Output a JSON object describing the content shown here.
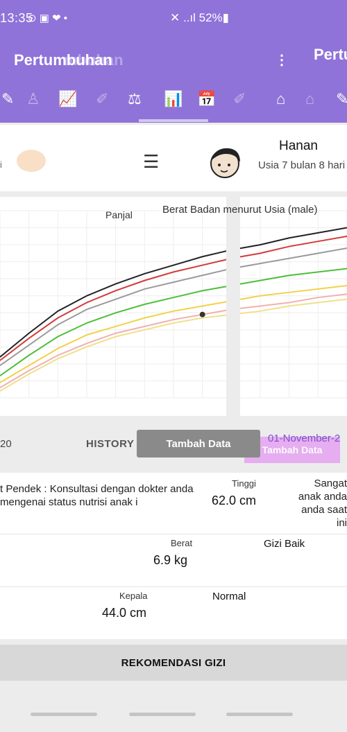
{
  "status_bar": {
    "time": "13:35",
    "sys_icons": "⊙ ▣ ❤ •",
    "right_text": "✕ ..ıl 52%▮"
  },
  "app_bar": {
    "title": "Pertumbuhan",
    "title_ghost": "mbuhan",
    "title_right": "Pertumbuhan",
    "menu_icon": "more-vert-icon"
  },
  "profile": {
    "name": "Hanan",
    "age": "Usia 7 bulan 8 hari",
    "ghost_text": "i"
  },
  "chart": {
    "title": "Berat Badan menurut Usia (male)",
    "ghost_title": "Panjal"
  },
  "chart_data": {
    "type": "line",
    "title": "Berat Badan menurut Usia (male)",
    "xlabel": "",
    "ylabel": "",
    "x": [
      0,
      1,
      2,
      3,
      4,
      5,
      6,
      7,
      8,
      9,
      10,
      11,
      12
    ],
    "series": [
      {
        "values": [
          4.4,
          5.8,
          7.1,
          8.0,
          8.7,
          9.3,
          9.8,
          10.3,
          10.7,
          11.0,
          11.4,
          11.7,
          12.0
        ]
      },
      {
        "values": [
          4.2,
          5.5,
          6.7,
          7.6,
          8.3,
          8.9,
          9.4,
          9.8,
          10.2,
          10.5,
          10.9,
          11.2,
          11.5
        ]
      },
      {
        "values": [
          3.9,
          5.1,
          6.3,
          7.2,
          7.8,
          8.4,
          8.8,
          9.2,
          9.6,
          9.9,
          10.2,
          10.5,
          10.8
        ]
      },
      {
        "values": [
          3.3,
          4.5,
          5.6,
          6.4,
          7.0,
          7.5,
          7.9,
          8.3,
          8.6,
          8.9,
          9.2,
          9.4,
          9.6
        ]
      },
      {
        "values": [
          2.9,
          3.9,
          4.9,
          5.7,
          6.2,
          6.7,
          7.1,
          7.4,
          7.7,
          8.0,
          8.2,
          8.4,
          8.6
        ]
      },
      {
        "values": [
          2.6,
          3.6,
          4.5,
          5.2,
          5.8,
          6.2,
          6.6,
          6.9,
          7.2,
          7.4,
          7.6,
          7.9,
          8.1
        ]
      },
      {
        "values": [
          2.4,
          3.4,
          4.3,
          5.0,
          5.6,
          6.0,
          6.4,
          6.7,
          6.9,
          7.1,
          7.4,
          7.6,
          7.8
        ]
      }
    ],
    "points": [
      {
        "x": 7,
        "y": 6.9
      }
    ]
  },
  "history": {
    "date_left": "20",
    "label": "HISTORY",
    "add_button": "Tambah Data",
    "date_right": "01-November-2",
    "ghost_button": "Tambah Data"
  },
  "details": {
    "warning": "t Pendek : Konsultasi dengan dokter anda mengenai status nutrisi anak i",
    "height_label": "Tinggi",
    "height_value": "62.0 cm",
    "height_status": "Sangat anak anda anda saat ini",
    "weight_label": "Berat",
    "weight_value": "6.9 kg",
    "weight_status": "Gizi Baik",
    "head_label": "Kepala",
    "head_value": "44.0 cm",
    "head_status": "Normal"
  },
  "recommendation_button": "REKOMENDASI GIZI",
  "colors": {
    "primary": "#8f73d9",
    "accent_purple": "#7b52c9",
    "button_grey": "#8a8a8a"
  }
}
